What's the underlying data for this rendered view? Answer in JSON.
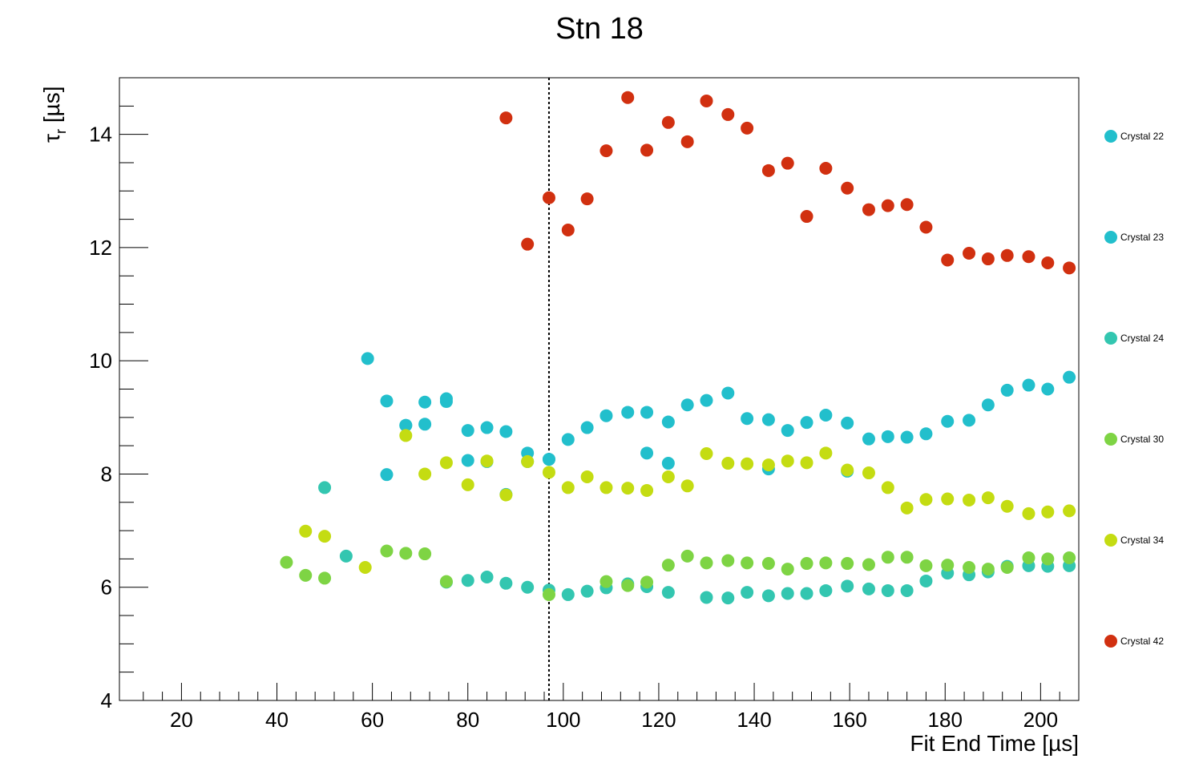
{
  "chart_data": {
    "type": "scatter",
    "title": "Stn 18",
    "xlabel": "Fit End Time [µs]",
    "ylabel_symbol": "τ",
    "ylabel_sub": "r",
    "ylabel_unit": " [µs]",
    "xlim": [
      7,
      208
    ],
    "ylim": [
      4,
      15
    ],
    "x_ticks": [
      20,
      40,
      60,
      80,
      100,
      120,
      140,
      160,
      180,
      200
    ],
    "y_ticks": [
      4,
      6,
      8,
      10,
      12,
      14
    ],
    "vertical_line_x": 97,
    "series": [
      {
        "name": "Crystal 22",
        "color": "#22bfcc",
        "x": [
          59,
          63,
          67,
          71,
          75.5,
          80,
          84,
          88,
          92.5,
          97,
          101,
          105,
          109,
          113.5,
          117.5,
          122,
          126,
          130,
          134.5,
          138.5,
          143,
          147,
          151,
          155,
          159.5,
          164,
          168,
          172,
          176,
          180.5,
          185,
          189,
          193,
          197.5,
          201.5,
          206
        ],
        "y": [
          10.04,
          9.29,
          8.86,
          9.27,
          9.33,
          8.77,
          8.82,
          8.75,
          8.37,
          8.26,
          8.61,
          8.82,
          9.03,
          9.09,
          9.09,
          8.92,
          9.22,
          9.3,
          9.43,
          8.98,
          8.96,
          8.77,
          8.91,
          9.04,
          8.9,
          8.62,
          8.66,
          8.65,
          8.71,
          8.93,
          8.95,
          9.22,
          9.48,
          9.57,
          9.5,
          9.71
        ]
      },
      {
        "name": "Crystal 23",
        "color": "#22bfcc",
        "x": [
          63,
          67,
          71,
          75.5,
          80,
          84,
          88,
          92.5,
          97,
          117.5,
          122,
          143,
          159.5
        ],
        "y": [
          7.99,
          8.86,
          8.88,
          9.28,
          8.24,
          8.22,
          7.64,
          8.22,
          8.26,
          8.37,
          8.19,
          8.09,
          8.05
        ]
      },
      {
        "name": "Crystal 24",
        "color": "#33c6b0",
        "x": [
          50,
          54.5,
          75.5,
          80,
          84,
          88,
          92.5,
          97,
          101,
          105,
          109,
          113.5,
          117.5,
          122,
          130,
          134.5,
          138.5,
          143,
          147,
          151,
          155,
          159.5,
          164,
          168,
          172,
          176,
          180.5,
          185,
          189,
          193,
          197.5,
          201.5,
          206
        ],
        "y": [
          7.76,
          6.55,
          6.09,
          6.12,
          6.18,
          6.07,
          6.0,
          5.95,
          5.87,
          5.93,
          5.99,
          6.06,
          6.01,
          5.91,
          5.82,
          5.81,
          5.91,
          5.85,
          5.89,
          5.89,
          5.94,
          6.02,
          5.97,
          5.94,
          5.94,
          6.11,
          6.25,
          6.22,
          6.27,
          6.37,
          6.38,
          6.37,
          6.38
        ]
      },
      {
        "name": "Crystal 30",
        "color": "#7ed444",
        "x": [
          42,
          46,
          50,
          63,
          67,
          71,
          75.5,
          97,
          109,
          113.5,
          117.5,
          122,
          126,
          130,
          134.5,
          138.5,
          143,
          147,
          151,
          155,
          159.5,
          164,
          168,
          172,
          176,
          180.5,
          185,
          189,
          193,
          197.5,
          201.5,
          206
        ],
        "y": [
          6.44,
          6.21,
          6.16,
          6.64,
          6.6,
          6.59,
          6.1,
          5.87,
          6.1,
          6.03,
          6.09,
          6.39,
          6.55,
          6.43,
          6.47,
          6.43,
          6.42,
          6.32,
          6.42,
          6.43,
          6.42,
          6.4,
          6.53,
          6.53,
          6.38,
          6.39,
          6.35,
          6.32,
          6.35,
          6.52,
          6.5,
          6.52
        ]
      },
      {
        "name": "Crystal 34",
        "color": "#c4dc12",
        "x": [
          46,
          50,
          58.5,
          67,
          71,
          75.5,
          80,
          84,
          88,
          92.5,
          97,
          101,
          105,
          109,
          113.5,
          117.5,
          122,
          126,
          130,
          134.5,
          138.5,
          143,
          147,
          151,
          155,
          159.5,
          164,
          168,
          172,
          176,
          180.5,
          185,
          189,
          193,
          197.5,
          201.5,
          206
        ],
        "y": [
          6.99,
          6.9,
          6.35,
          8.68,
          8.0,
          8.2,
          7.81,
          8.23,
          7.63,
          8.22,
          8.03,
          7.76,
          7.95,
          7.76,
          7.75,
          7.71,
          7.95,
          7.79,
          8.36,
          8.19,
          8.18,
          8.16,
          8.23,
          8.2,
          8.37,
          8.07,
          8.02,
          7.76,
          7.4,
          7.55,
          7.56,
          7.54,
          7.58,
          7.43,
          7.3,
          7.33,
          7.35
        ]
      },
      {
        "name": "Crystal 42",
        "color": "#d13010",
        "x": [
          88,
          92.5,
          97,
          101,
          105,
          109,
          113.5,
          117.5,
          122,
          126,
          130,
          134.5,
          138.5,
          143,
          147,
          151,
          155,
          159.5,
          164,
          168,
          172,
          176,
          180.5,
          185,
          189,
          193,
          197.5,
          201.5,
          206
        ],
        "y": [
          14.29,
          12.06,
          12.88,
          12.31,
          12.86,
          13.71,
          14.65,
          13.72,
          14.21,
          13.87,
          14.59,
          14.35,
          14.11,
          13.36,
          13.49,
          12.55,
          13.4,
          13.05,
          12.67,
          12.74,
          12.76,
          12.36,
          11.78,
          11.9,
          11.8,
          11.86,
          11.84,
          11.73,
          11.64
        ]
      }
    ]
  }
}
